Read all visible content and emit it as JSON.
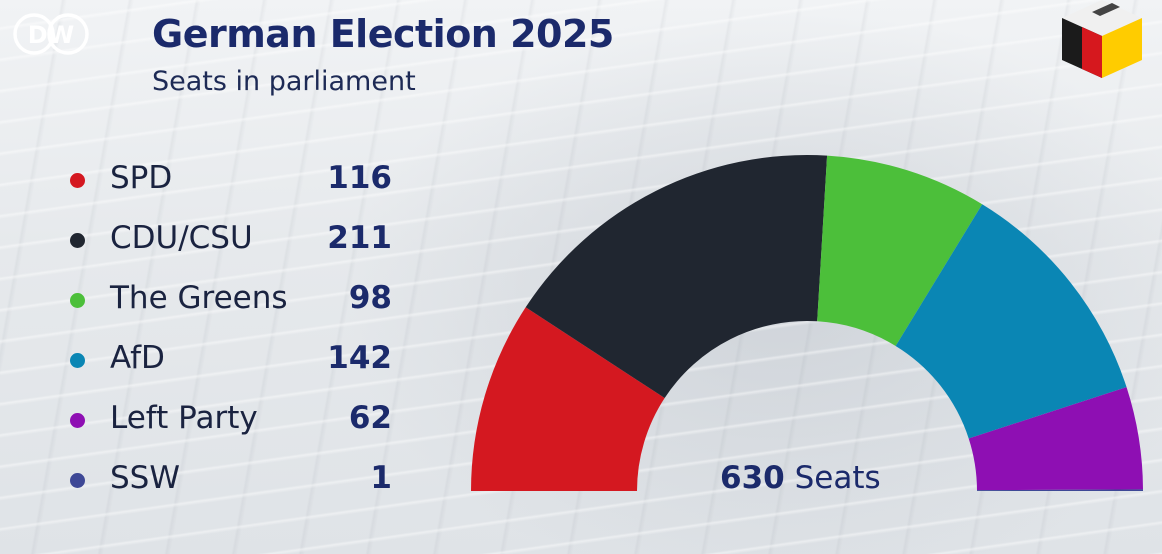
{
  "header": {
    "logo_text": "DW",
    "title": "German Election 2025",
    "subtitle": "Seats in parliament"
  },
  "chart_data": {
    "type": "pie",
    "subtype": "semicircle-parliament",
    "total_number": "630",
    "total_unit": "Seats",
    "total": 630,
    "series": [
      {
        "name": "SPD",
        "value": 116,
        "label": "116",
        "color": "#d41820"
      },
      {
        "name": "CDU/CSU",
        "value": 211,
        "label": "211",
        "color": "#202630"
      },
      {
        "name": "The Greens",
        "value": 98,
        "label": "98",
        "color": "#4cbf3a"
      },
      {
        "name": "AfD",
        "value": 142,
        "label": "142",
        "color": "#0a86b4"
      },
      {
        "name": "Left Party",
        "value": 62,
        "label": "62",
        "color": "#8e0fb3"
      },
      {
        "name": "SSW",
        "value": 1,
        "label": "1",
        "color": "#3e4896"
      }
    ]
  },
  "icons": {
    "brand": "dw-logo-icon",
    "ballot": "ballot-box-icon"
  }
}
